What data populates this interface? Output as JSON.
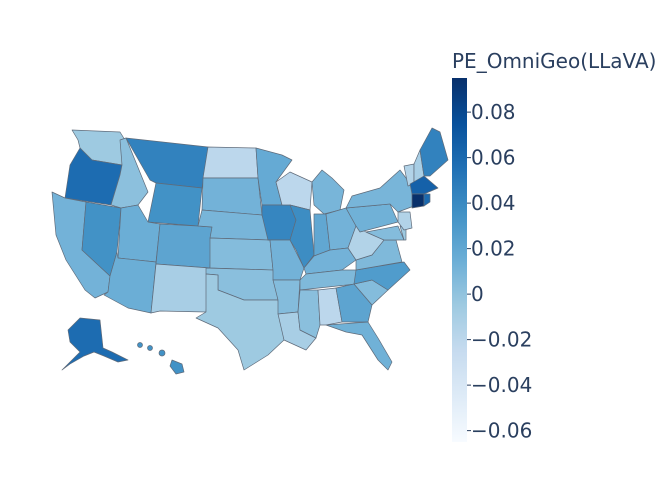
{
  "colorbar": {
    "title": "PE_OmniGeo(LLaVA)",
    "min": -0.065,
    "max": 0.095,
    "ticks": [
      {
        "value": 0.08,
        "label": "0.08"
      },
      {
        "value": 0.06,
        "label": "0.06"
      },
      {
        "value": 0.04,
        "label": "0.04"
      },
      {
        "value": 0.02,
        "label": "0.02"
      },
      {
        "value": 0,
        "label": "0"
      },
      {
        "value": -0.02,
        "label": "−0.02"
      },
      {
        "value": -0.04,
        "label": "−0.04"
      },
      {
        "value": -0.06,
        "label": "−0.06"
      }
    ],
    "colorscale": [
      "#f7fbff",
      "#deebf7",
      "#c6dbef",
      "#9ecae1",
      "#6baed6",
      "#4292c6",
      "#2171b5",
      "#08519c",
      "#08306b"
    ]
  },
  "states": [
    {
      "code": "WA",
      "value": -0.005
    },
    {
      "code": "OR",
      "value": 0.058
    },
    {
      "code": "CA",
      "value": 0.012
    },
    {
      "code": "NV",
      "value": 0.035
    },
    {
      "code": "ID",
      "value": 0.002
    },
    {
      "code": "MT",
      "value": 0.045
    },
    {
      "code": "WY",
      "value": 0.035
    },
    {
      "code": "UT",
      "value": 0.015
    },
    {
      "code": "AZ",
      "value": 0.015
    },
    {
      "code": "CO",
      "value": 0.022
    },
    {
      "code": "NM",
      "value": -0.01
    },
    {
      "code": "ND",
      "value": -0.02
    },
    {
      "code": "SD",
      "value": 0.012
    },
    {
      "code": "NE",
      "value": 0.01
    },
    {
      "code": "KS",
      "value": 0.005
    },
    {
      "code": "OK",
      "value": 0.003
    },
    {
      "code": "TX",
      "value": -0.005
    },
    {
      "code": "MN",
      "value": 0.018
    },
    {
      "code": "IA",
      "value": 0.042
    },
    {
      "code": "MO",
      "value": 0.012
    },
    {
      "code": "AR",
      "value": 0.005
    },
    {
      "code": "LA",
      "value": -0.01
    },
    {
      "code": "WI",
      "value": -0.02
    },
    {
      "code": "IL",
      "value": 0.038
    },
    {
      "code": "MS",
      "value": 0.003
    },
    {
      "code": "MI",
      "value": 0.01
    },
    {
      "code": "IN",
      "value": 0.02
    },
    {
      "code": "OH",
      "value": 0.012
    },
    {
      "code": "KY",
      "value": 0.012
    },
    {
      "code": "TN",
      "value": 0.007
    },
    {
      "code": "AL",
      "value": -0.02
    },
    {
      "code": "GA",
      "value": 0.022
    },
    {
      "code": "FL",
      "value": 0.013
    },
    {
      "code": "SC",
      "value": 0.005
    },
    {
      "code": "NC",
      "value": 0.028
    },
    {
      "code": "VA",
      "value": 0.007
    },
    {
      "code": "WV",
      "value": -0.015
    },
    {
      "code": "PA",
      "value": 0.013
    },
    {
      "code": "NY",
      "value": 0.01
    },
    {
      "code": "MD",
      "value": 0.005
    },
    {
      "code": "DE",
      "value": -0.005
    },
    {
      "code": "NJ",
      "value": -0.015
    },
    {
      "code": "CT",
      "value": 0.095
    },
    {
      "code": "RI",
      "value": 0.06
    },
    {
      "code": "MA",
      "value": 0.065
    },
    {
      "code": "VT",
      "value": -0.015
    },
    {
      "code": "NH",
      "value": -0.01
    },
    {
      "code": "ME",
      "value": 0.045
    },
    {
      "code": "AK",
      "value": 0.058
    },
    {
      "code": "HI",
      "value": 0.035
    }
  ]
}
